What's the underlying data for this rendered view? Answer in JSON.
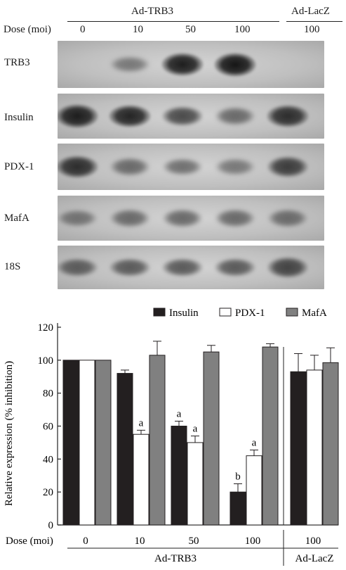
{
  "blot": {
    "group_main": "Ad-TRB3",
    "group_ctrl": "Ad-LacZ",
    "dose_label": "Dose (moi)",
    "doses": [
      "0",
      "10",
      "50",
      "100",
      "100"
    ],
    "rows": [
      {
        "label": "TRB3",
        "band_intensity": [
          0.0,
          0.35,
          0.95,
          1.0,
          0.0
        ]
      },
      {
        "label": "Insulin",
        "band_intensity": [
          0.95,
          0.9,
          0.65,
          0.45,
          0.85
        ]
      },
      {
        "label": "PDX-1",
        "band_intensity": [
          0.85,
          0.45,
          0.4,
          0.35,
          0.75
        ]
      },
      {
        "label": "MafA",
        "band_intensity": [
          0.4,
          0.45,
          0.45,
          0.45,
          0.45
        ]
      },
      {
        "label": "18S",
        "band_intensity": [
          0.55,
          0.55,
          0.55,
          0.55,
          0.7
        ]
      }
    ]
  },
  "chart_data": {
    "type": "bar",
    "ylabel": "Relative expression (% inhibition)",
    "xlabel": "Dose (moi)",
    "ylim": [
      0,
      120
    ],
    "yticks": [
      "0",
      "20",
      "40",
      "60",
      "80",
      "100",
      "120"
    ],
    "categories": [
      "0",
      "10",
      "50",
      "100",
      "100"
    ],
    "groups": [
      {
        "name": "Ad-TRB3",
        "span": [
          0,
          3
        ]
      },
      {
        "name": "Ad-LacZ",
        "span": [
          4,
          4
        ]
      }
    ],
    "legend_position": "top-right",
    "series": [
      {
        "name": "Insulin",
        "color": "#231f20",
        "values": [
          100,
          92,
          60,
          20,
          93
        ],
        "errors": [
          0,
          2,
          3,
          5,
          11
        ],
        "sig": [
          "",
          "",
          "a",
          "b",
          ""
        ]
      },
      {
        "name": "PDX-1",
        "color": "#ffffff",
        "values": [
          100,
          55,
          50,
          42,
          94
        ],
        "errors": [
          0,
          2.5,
          4,
          3.5,
          9
        ],
        "sig": [
          "",
          "a",
          "a",
          "a",
          ""
        ]
      },
      {
        "name": "MafA",
        "color": "#808080",
        "values": [
          100,
          103,
          105,
          108,
          98.5
        ],
        "errors": [
          0,
          8.5,
          4,
          2,
          9
        ],
        "sig": [
          "",
          "",
          "",
          "",
          ""
        ]
      }
    ]
  }
}
